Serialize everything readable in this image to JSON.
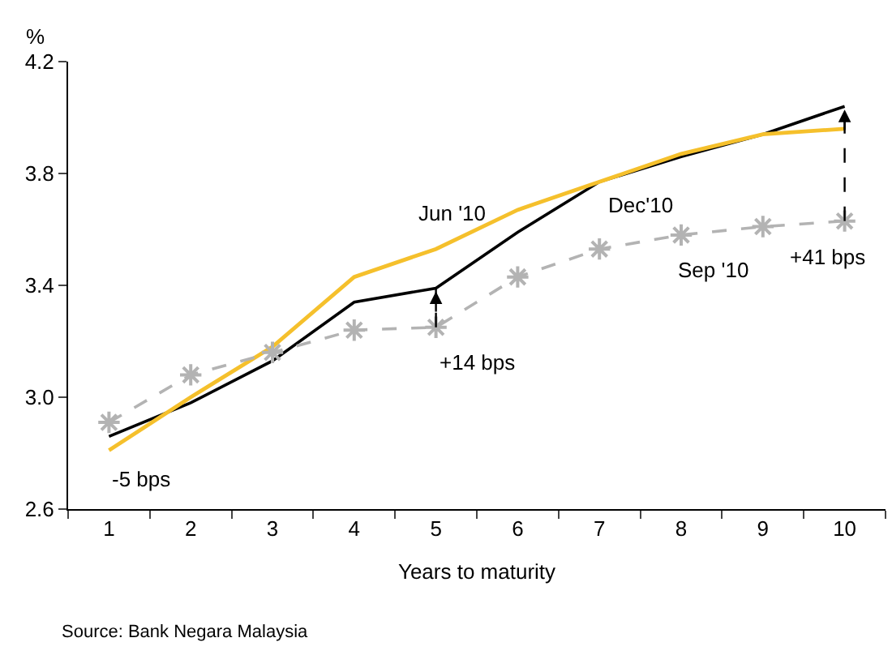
{
  "chart_data": {
    "type": "line",
    "ylabel": "%",
    "xlabel": "Years to maturity",
    "categories": [
      "1",
      "2",
      "3",
      "4",
      "5",
      "6",
      "7",
      "8",
      "9",
      "10"
    ],
    "series": [
      {
        "name": "Dec'10",
        "color": "#000000",
        "values": [
          2.86,
          2.98,
          3.13,
          3.34,
          3.39,
          3.59,
          3.77,
          3.86,
          3.94,
          4.04
        ]
      },
      {
        "name": "Jun '10",
        "color": "#f5c02c",
        "values": [
          2.81,
          3.0,
          3.18,
          3.43,
          3.53,
          3.67,
          3.77,
          3.87,
          3.94,
          3.96
        ]
      },
      {
        "name": "Sep '10",
        "color": "#b3b3b3",
        "values": [
          2.91,
          3.08,
          3.16,
          3.24,
          3.25,
          3.43,
          3.53,
          3.58,
          3.61,
          3.63
        ],
        "marker": "cross",
        "line_style": "dashed"
      }
    ],
    "ylim": [
      2.6,
      4.2
    ],
    "yticks": [
      2.6,
      {
        "value": 3,
        "label": "3.0"
      },
      3.4,
      3.8,
      4.2
    ],
    "legend": false,
    "annotations": [
      {
        "text": "-5 bps",
        "x": "1",
        "y": 2.86
      },
      {
        "text": "+14 bps",
        "x": "5",
        "y": 3.25
      },
      {
        "text": "+41 bps",
        "x": "10",
        "y": 3.63
      },
      "Source: Bank Negara Malaysia"
    ]
  }
}
